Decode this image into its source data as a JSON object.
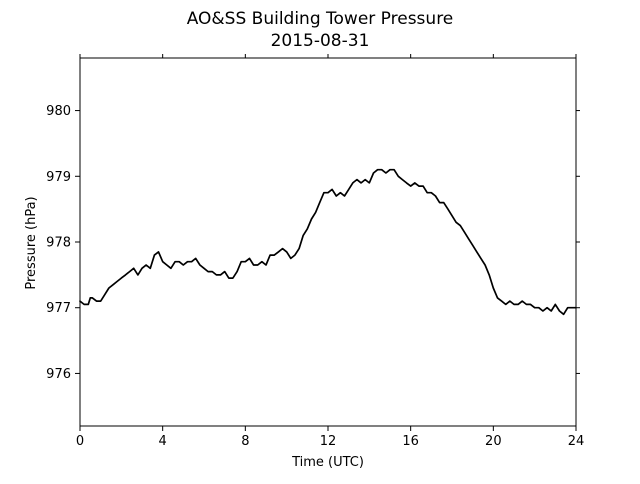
{
  "chart_data": {
    "type": "line",
    "title": "AO&SS Building Tower Pressure",
    "subtitle": "2015-08-31",
    "xlabel": "Time (UTC)",
    "ylabel": "Pressure (hPa)",
    "xlim": [
      0,
      24
    ],
    "ylim": [
      975.2,
      980.8
    ],
    "xticks": [
      0,
      4,
      8,
      12,
      16,
      20,
      24
    ],
    "xtick_labels": [
      "0",
      "4",
      "8",
      "12",
      "16",
      "20",
      "24"
    ],
    "yticks": [
      976,
      977,
      978,
      979,
      980
    ],
    "ytick_labels": [
      "976",
      "977",
      "978",
      "979",
      "980"
    ],
    "grid": false,
    "line_color": "#000000",
    "series": [
      {
        "x": [
          0,
          0.2,
          0.4,
          0.5,
          0.6,
          0.8,
          1.0,
          1.2,
          1.4,
          1.6,
          1.8,
          2.0,
          2.2,
          2.4,
          2.6,
          2.8,
          3.0,
          3.2,
          3.4,
          3.6,
          3.8,
          4.0,
          4.2,
          4.4,
          4.6,
          4.8,
          5.0,
          5.2,
          5.4,
          5.6,
          5.8,
          6.0,
          6.2,
          6.4,
          6.6,
          6.8,
          7.0,
          7.2,
          7.4,
          7.6,
          7.8,
          8.0,
          8.2,
          8.4,
          8.6,
          8.8,
          9.0,
          9.2,
          9.4,
          9.6,
          9.8,
          10.0,
          10.2,
          10.4,
          10.6,
          10.8,
          11.0,
          11.2,
          11.4,
          11.6,
          11.8,
          12.0,
          12.2,
          12.4,
          12.6,
          12.8,
          13.0,
          13.2,
          13.4,
          13.6,
          13.8,
          14.0,
          14.2,
          14.4,
          14.6,
          14.8,
          15.0,
          15.2,
          15.4,
          15.6,
          15.8,
          16.0,
          16.2,
          16.4,
          16.6,
          16.8,
          17.0,
          17.2,
          17.4,
          17.6,
          17.8,
          18.0,
          18.2,
          18.4,
          18.6,
          18.8,
          19.0,
          19.2,
          19.4,
          19.6,
          19.8,
          20.0,
          20.2,
          20.4,
          20.6,
          20.8,
          21.0,
          21.2,
          21.4,
          21.6,
          21.8,
          22.0,
          22.2,
          22.4,
          22.6,
          22.8,
          23.0,
          23.2,
          23.4,
          23.6,
          23.8,
          24.0
        ],
        "values": [
          977.1,
          977.05,
          977.05,
          977.15,
          977.15,
          977.1,
          977.1,
          977.2,
          977.3,
          977.35,
          977.4,
          977.45,
          977.5,
          977.55,
          977.6,
          977.5,
          977.6,
          977.65,
          977.6,
          977.8,
          977.85,
          977.7,
          977.65,
          977.6,
          977.7,
          977.7,
          977.65,
          977.7,
          977.7,
          977.75,
          977.65,
          977.6,
          977.55,
          977.55,
          977.5,
          977.5,
          977.55,
          977.45,
          977.45,
          977.55,
          977.7,
          977.7,
          977.75,
          977.65,
          977.65,
          977.7,
          977.65,
          977.8,
          977.8,
          977.85,
          977.9,
          977.85,
          977.75,
          977.8,
          977.9,
          978.1,
          978.2,
          978.35,
          978.45,
          978.6,
          978.75,
          978.75,
          978.8,
          978.7,
          978.75,
          978.7,
          978.8,
          978.9,
          978.95,
          978.9,
          978.95,
          978.9,
          979.05,
          979.1,
          979.1,
          979.05,
          979.1,
          979.1,
          979.0,
          978.95,
          978.9,
          978.85,
          978.9,
          978.85,
          978.85,
          978.75,
          978.75,
          978.7,
          978.6,
          978.6,
          978.5,
          978.4,
          978.3,
          978.25,
          978.15,
          978.05,
          977.95,
          977.85,
          977.75,
          977.65,
          977.5,
          977.3,
          977.15,
          977.1,
          977.05,
          977.1,
          977.05,
          977.05,
          977.1,
          977.05,
          977.05,
          977.0,
          977.0,
          976.95,
          977.0,
          976.95,
          977.05,
          976.95,
          976.9,
          977.0,
          977.0,
          977.0
        ]
      }
    ]
  }
}
